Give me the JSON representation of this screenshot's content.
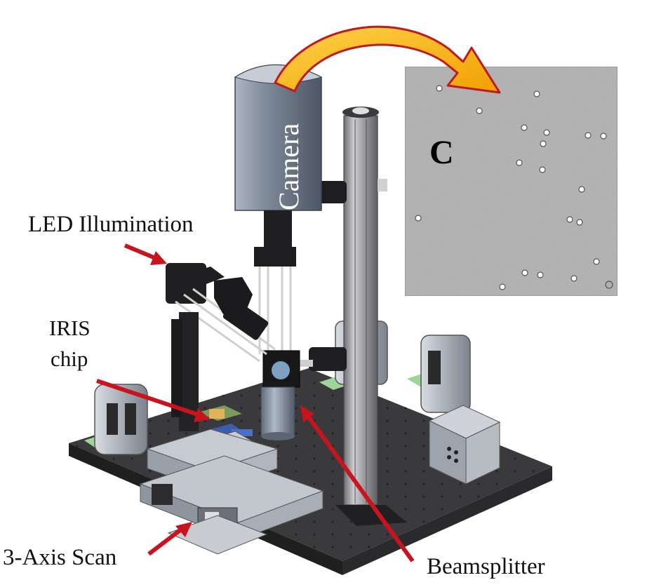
{
  "labels": {
    "camera": "Camera",
    "led": "LED Illumination",
    "iris_line1": "IRIS",
    "iris_line2": "chip",
    "scan": "3-Axis Scan",
    "beamsplitter": "Beamsplitter",
    "panel": "C"
  },
  "colors": {
    "pointer_arrow": "#c8141e",
    "transfer_arrow_fill": "#f5b400",
    "transfer_arrow_outline": "#c0191f",
    "breadboard": "#3a3a3c",
    "rail": "#a9a9ad",
    "camera_body": "#6f7b8c",
    "micrograph_bg": "#b9b9b9"
  },
  "icons": [
    "curved-transfer-arrow",
    "pointer-arrow"
  ]
}
